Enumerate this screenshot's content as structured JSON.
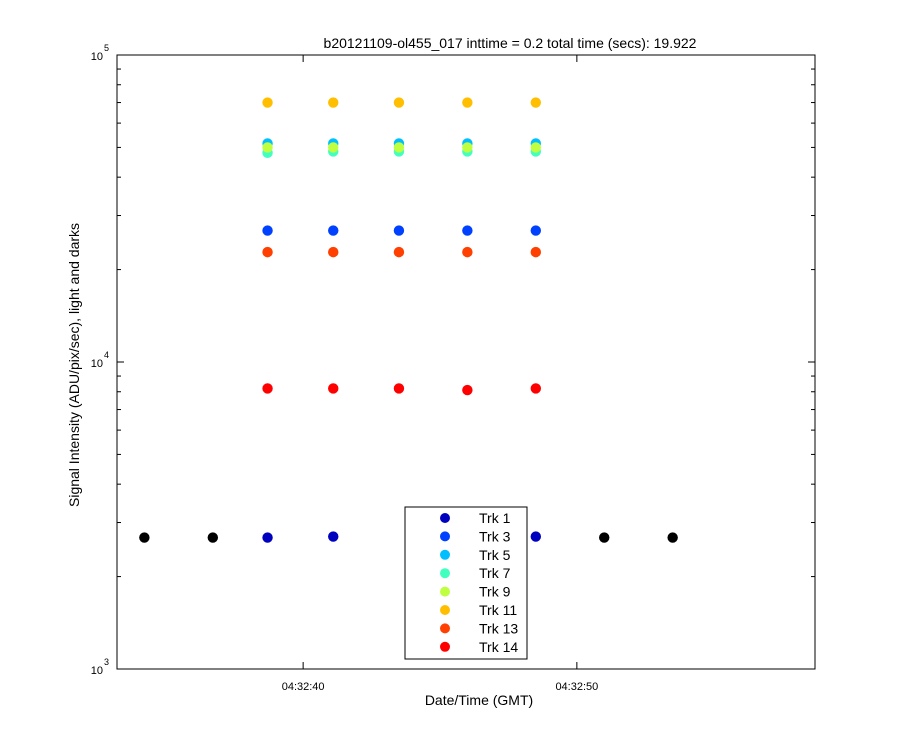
{
  "chart_data": {
    "type": "scatter",
    "title": "b20121109-ol455_017 inttime = 0.2 total time (secs): 19.922",
    "xlabel": "Date/Time (GMT)",
    "ylabel": "Signal Intensity (ADU/pix/sec), light and darks",
    "y_scale": "log",
    "ylim": [
      1000,
      100000
    ],
    "y_ticks": [
      {
        "base": "10",
        "exp": "3",
        "value": 1000
      },
      {
        "base": "10",
        "exp": "4",
        "value": 10000
      },
      {
        "base": "10",
        "exp": "5",
        "value": 100000
      }
    ],
    "xlim": [
      "04:32:33.2",
      "04:32:58.7"
    ],
    "x_ticks": [
      "04:32:40",
      "04:32:50"
    ],
    "grid": false,
    "legend_position": "bottom-center",
    "series": [
      {
        "name": "Trk 1",
        "color": "#0000bf",
        "x": [
          "04:32:38.7",
          "04:32:41.1",
          "04:32:48.5"
        ],
        "y": [
          2680,
          2700,
          2700
        ]
      },
      {
        "name": "Trk 3",
        "color": "#0040ff",
        "x": [
          "04:32:38.7",
          "04:32:41.1",
          "04:32:43.5",
          "04:32:46.0",
          "04:32:48.5"
        ],
        "y": [
          26800,
          26800,
          26800,
          26800,
          26800
        ]
      },
      {
        "name": "Trk 5",
        "color": "#00bfff",
        "x": [
          "04:32:38.7",
          "04:32:41.1",
          "04:32:43.5",
          "04:32:46.0",
          "04:32:48.5"
        ],
        "y": [
          51500,
          51500,
          51500,
          51500,
          51500
        ]
      },
      {
        "name": "Trk 7",
        "color": "#40ffbf",
        "x": [
          "04:32:38.7",
          "04:32:41.1",
          "04:32:43.5",
          "04:32:46.0",
          "04:32:48.5"
        ],
        "y": [
          48000,
          48500,
          48500,
          48500,
          48500
        ]
      },
      {
        "name": "Trk 9",
        "color": "#bfff40",
        "x": [
          "04:32:38.7",
          "04:32:41.1",
          "04:32:43.5",
          "04:32:46.0",
          "04:32:48.5"
        ],
        "y": [
          50000,
          50000,
          50000,
          50000,
          50000
        ]
      },
      {
        "name": "Trk 11",
        "color": "#ffbf00",
        "x": [
          "04:32:38.7",
          "04:32:41.1",
          "04:32:43.5",
          "04:32:46.0",
          "04:32:48.5"
        ],
        "y": [
          70000,
          70000,
          70000,
          70000,
          70000
        ]
      },
      {
        "name": "Trk 13",
        "color": "#ff4000",
        "x": [
          "04:32:38.7",
          "04:32:41.1",
          "04:32:43.5",
          "04:32:46.0",
          "04:32:48.5"
        ],
        "y": [
          22800,
          22800,
          22800,
          22800,
          22800
        ]
      },
      {
        "name": "Trk 14",
        "color": "#ff0000",
        "x": [
          "04:32:38.7",
          "04:32:41.1",
          "04:32:43.5",
          "04:32:46.0",
          "04:32:48.5"
        ],
        "y": [
          8200,
          8200,
          8200,
          8100,
          8200
        ]
      },
      {
        "color": "#000000",
        "x": [
          "04:32:34.2",
          "04:32:36.7",
          "04:32:51.0",
          "04:32:53.5"
        ],
        "y": [
          2680,
          2680,
          2680,
          2680
        ]
      }
    ]
  }
}
